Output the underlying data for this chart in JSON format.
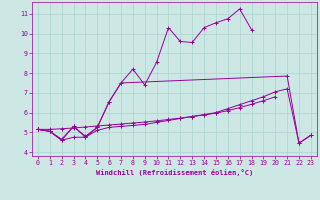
{
  "xlabel": "Windchill (Refroidissement éolien,°C)",
  "background_color": "#cde8e4",
  "grid_color": "#a8d4ce",
  "line_color": "#990099",
  "xlim": [
    -0.5,
    23.5
  ],
  "ylim": [
    3.8,
    11.6
  ],
  "yticks": [
    4,
    5,
    6,
    7,
    8,
    9,
    10,
    11
  ],
  "xticks": [
    0,
    1,
    2,
    3,
    4,
    5,
    6,
    7,
    8,
    9,
    10,
    11,
    12,
    13,
    14,
    15,
    16,
    17,
    18,
    19,
    20,
    21,
    22,
    23
  ],
  "series": [
    {
      "x": [
        0,
        1,
        2,
        3,
        4,
        5,
        6,
        7,
        8,
        9,
        10,
        11,
        12,
        13,
        14,
        15,
        16,
        17,
        18
      ],
      "y": [
        5.15,
        5.05,
        4.6,
        5.3,
        4.75,
        5.25,
        6.55,
        7.5,
        8.2,
        7.4,
        8.55,
        10.3,
        9.6,
        9.55,
        10.3,
        10.55,
        10.75,
        11.25,
        10.2
      ]
    },
    {
      "x": [
        0,
        1,
        2,
        3,
        4,
        5,
        6,
        7,
        8,
        9,
        10,
        11,
        12,
        13,
        14,
        15,
        16,
        17,
        18,
        19,
        20,
        21,
        22,
        23
      ],
      "y": [
        5.15,
        5.05,
        4.6,
        4.75,
        4.75,
        5.1,
        5.25,
        5.3,
        5.35,
        5.4,
        5.5,
        5.6,
        5.7,
        5.8,
        5.9,
        6.0,
        6.2,
        6.4,
        6.6,
        6.8,
        7.05,
        7.2,
        4.45,
        4.85
      ]
    },
    {
      "x": [
        0,
        1,
        2,
        3,
        4,
        5,
        6,
        7,
        8,
        9,
        10,
        11,
        12,
        13,
        14,
        15,
        16,
        17,
        18,
        19,
        20
      ],
      "y": [
        5.15,
        5.15,
        5.18,
        5.22,
        5.27,
        5.32,
        5.37,
        5.42,
        5.47,
        5.52,
        5.58,
        5.65,
        5.72,
        5.8,
        5.88,
        5.97,
        6.1,
        6.25,
        6.42,
        6.6,
        6.8
      ]
    },
    {
      "x": [
        0,
        1,
        2,
        3,
        4,
        5,
        6,
        7,
        21,
        22,
        23
      ],
      "y": [
        5.15,
        5.05,
        4.65,
        5.3,
        4.8,
        5.25,
        6.55,
        7.5,
        7.85,
        4.45,
        4.85
      ]
    }
  ]
}
